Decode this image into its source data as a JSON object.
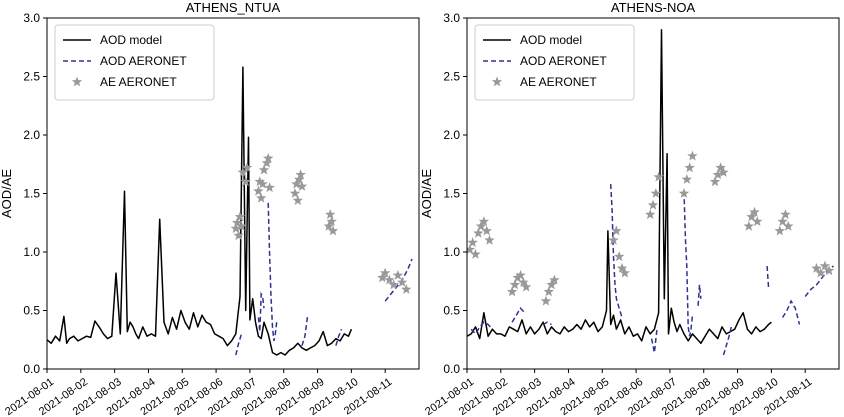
{
  "chart_data": [
    {
      "type": "line",
      "title": "ATHENS_NTUA",
      "ylabel": "AOD/AE",
      "xlabel": "",
      "ylim": [
        0,
        3.0
      ],
      "yticks": [
        "0.0",
        "0.5",
        "1.0",
        "1.5",
        "2.0",
        "2.5",
        "3.0"
      ],
      "xlim": [
        "2021-08-01",
        "2021-08-12"
      ],
      "xticks": [
        "2021-08-01",
        "2021-08-02",
        "2021-08-03",
        "2021-08-04",
        "2021-08-05",
        "2021-08-06",
        "2021-08-07",
        "2021-08-08",
        "2021-08-09",
        "2021-08-10",
        "2021-08-11"
      ],
      "legend": {
        "placement": "top-left",
        "entries": [
          "AOD model",
          "AOD AERONET",
          "AE AERONET"
        ]
      },
      "series": [
        {
          "name": "AOD model",
          "style": "solid",
          "color": "#000000",
          "x": [
            "2021-08-01T00",
            "2021-08-01T03",
            "2021-08-01T06",
            "2021-08-01T09",
            "2021-08-01T12",
            "2021-08-01T14",
            "2021-08-01T16",
            "2021-08-01T19",
            "2021-08-01T22",
            "2021-08-02T01",
            "2021-08-02T04",
            "2021-08-02T07",
            "2021-08-02T10",
            "2021-08-02T13",
            "2021-08-02T16",
            "2021-08-02T19",
            "2021-08-02T22",
            "2021-08-03T01",
            "2021-08-03T04",
            "2021-08-03T07",
            "2021-08-03T09",
            "2021-08-03T11",
            "2021-08-03T13",
            "2021-08-03T15",
            "2021-08-03T17",
            "2021-08-03T20",
            "2021-08-03T23",
            "2021-08-04T02",
            "2021-08-04T05",
            "2021-08-04T08",
            "2021-08-04T11",
            "2021-08-04T14",
            "2021-08-04T17",
            "2021-08-04T20",
            "2021-08-04T23",
            "2021-08-05T02",
            "2021-08-05T05",
            "2021-08-05T08",
            "2021-08-05T11",
            "2021-08-05T14",
            "2021-08-05T17",
            "2021-08-05T20",
            "2021-08-05T23",
            "2021-08-06T02",
            "2021-08-06T05",
            "2021-08-06T08",
            "2021-08-06T11",
            "2021-08-06T14",
            "2021-08-06T17",
            "2021-08-06T19",
            "2021-08-06T21",
            "2021-08-06T23",
            "2021-08-07T00",
            "2021-08-07T02",
            "2021-08-07T04",
            "2021-08-07T06",
            "2021-08-07T08",
            "2021-08-07T10",
            "2021-08-07T13",
            "2021-08-07T16",
            "2021-08-07T19",
            "2021-08-07T22",
            "2021-08-08T01",
            "2021-08-08T04",
            "2021-08-08T07",
            "2021-08-08T10",
            "2021-08-08T13",
            "2021-08-08T16",
            "2021-08-08T19",
            "2021-08-08T22",
            "2021-08-09T01",
            "2021-08-09T04",
            "2021-08-09T07",
            "2021-08-09T10",
            "2021-08-09T13",
            "2021-08-09T16",
            "2021-08-09T19",
            "2021-08-09T22",
            "2021-08-10T00"
          ],
          "y": [
            0.25,
            0.22,
            0.28,
            0.24,
            0.45,
            0.22,
            0.26,
            0.28,
            0.24,
            0.26,
            0.28,
            0.27,
            0.41,
            0.36,
            0.3,
            0.26,
            0.28,
            0.82,
            0.3,
            1.52,
            0.32,
            0.4,
            0.36,
            0.3,
            0.26,
            0.36,
            0.28,
            0.3,
            0.28,
            1.28,
            0.4,
            0.3,
            0.44,
            0.34,
            0.5,
            0.4,
            0.34,
            0.48,
            0.36,
            0.46,
            0.4,
            0.38,
            0.3,
            0.28,
            0.26,
            0.2,
            0.24,
            0.3,
            0.62,
            2.58,
            0.5,
            1.98,
            0.42,
            0.6,
            0.4,
            0.28,
            0.26,
            0.4,
            0.3,
            0.14,
            0.12,
            0.14,
            0.12,
            0.16,
            0.18,
            0.22,
            0.18,
            0.16,
            0.18,
            0.2,
            0.24,
            0.32,
            0.2,
            0.22,
            0.26,
            0.24,
            0.3,
            0.28,
            0.34
          ]
        },
        {
          "name": "AOD AERONET",
          "style": "dashed",
          "color": "#2e3192",
          "segments": [
            {
              "x": [
                "2021-08-06T14",
                "2021-08-06T16",
                "2021-08-06T18"
              ],
              "y": [
                0.12,
                0.22,
                0.3
              ]
            },
            {
              "x": [
                "2021-08-07T06",
                "2021-08-07T07",
                "2021-08-07T08",
                "2021-08-07T09",
                "2021-08-07T10"
              ],
              "y": [
                0.44,
                0.32,
                0.64,
                0.62,
                0.52
              ]
            },
            {
              "x": [
                "2021-08-07T13",
                "2021-08-07T14",
                "2021-08-07T15",
                "2021-08-07T16",
                "2021-08-07T17",
                "2021-08-07T18",
                "2021-08-07T19"
              ],
              "y": [
                1.42,
                0.98,
                0.62,
                0.36,
                0.24,
                0.3,
                0.4
              ]
            },
            {
              "x": [
                "2021-08-08T13",
                "2021-08-08T15",
                "2021-08-08T17"
              ],
              "y": [
                0.2,
                0.28,
                0.46
              ]
            },
            {
              "x": [
                "2021-08-09T13",
                "2021-08-09T15",
                "2021-08-09T17"
              ],
              "y": [
                0.2,
                0.28,
                0.34
              ]
            },
            {
              "x": [
                "2021-08-11T00",
                "2021-08-11T04",
                "2021-08-11T08",
                "2021-08-11T12",
                "2021-08-11T16",
                "2021-08-11T19"
              ],
              "y": [
                0.58,
                0.64,
                0.7,
                0.76,
                0.85,
                0.94
              ]
            }
          ]
        },
        {
          "name": "AE AERONET",
          "style": "marker",
          "marker": "star",
          "color": "#999999",
          "x": [
            "2021-08-06T14",
            "2021-08-06T15",
            "2021-08-06T16",
            "2021-08-06T17",
            "2021-08-06T18",
            "2021-08-06T19",
            "2021-08-06T21",
            "2021-08-06T22",
            "2021-08-07T06",
            "2021-08-07T07",
            "2021-08-07T08",
            "2021-08-07T09",
            "2021-08-07T10",
            "2021-08-07T12",
            "2021-08-07T13",
            "2021-08-07T14",
            "2021-08-08T08",
            "2021-08-08T09",
            "2021-08-08T10",
            "2021-08-08T11",
            "2021-08-08T12",
            "2021-08-08T13",
            "2021-08-09T08",
            "2021-08-09T09",
            "2021-08-09T10",
            "2021-08-09T11",
            "2021-08-10T22",
            "2021-08-11T00",
            "2021-08-11T03",
            "2021-08-11T06",
            "2021-08-11T09",
            "2021-08-11T12",
            "2021-08-11T15"
          ],
          "y": [
            1.2,
            1.25,
            1.14,
            1.3,
            1.22,
            1.68,
            1.6,
            1.72,
            1.52,
            1.6,
            1.46,
            1.58,
            1.7,
            1.76,
            1.8,
            1.55,
            1.5,
            1.58,
            1.44,
            1.62,
            1.66,
            1.56,
            1.22,
            1.32,
            1.26,
            1.18,
            0.78,
            0.82,
            0.76,
            0.72,
            0.8,
            0.74,
            0.68
          ]
        }
      ]
    },
    {
      "type": "line",
      "title": "ATHENS-NOA",
      "ylabel": "AOD/AE",
      "xlabel": "",
      "ylim": [
        0,
        3.0
      ],
      "yticks": [
        "0.0",
        "0.5",
        "1.0",
        "1.5",
        "2.0",
        "2.5",
        "3.0"
      ],
      "xlim": [
        "2021-08-01",
        "2021-08-12"
      ],
      "xticks": [
        "2021-08-01",
        "2021-08-02",
        "2021-08-03",
        "2021-08-04",
        "2021-08-05",
        "2021-08-06",
        "2021-08-07",
        "2021-08-08",
        "2021-08-09",
        "2021-08-10",
        "2021-08-11"
      ],
      "legend": {
        "placement": "top-left",
        "entries": [
          "AOD model",
          "AOD AERONET",
          "AE AERONET"
        ]
      },
      "series": [
        {
          "name": "AOD model",
          "style": "solid",
          "color": "#000000",
          "x": [
            "2021-08-01T00",
            "2021-08-01T03",
            "2021-08-01T06",
            "2021-08-01T09",
            "2021-08-01T12",
            "2021-08-01T15",
            "2021-08-01T18",
            "2021-08-01T21",
            "2021-08-02T00",
            "2021-08-02T03",
            "2021-08-02T06",
            "2021-08-02T09",
            "2021-08-02T12",
            "2021-08-02T15",
            "2021-08-02T18",
            "2021-08-02T21",
            "2021-08-03T00",
            "2021-08-03T03",
            "2021-08-03T06",
            "2021-08-03T09",
            "2021-08-03T12",
            "2021-08-03T15",
            "2021-08-03T18",
            "2021-08-03T21",
            "2021-08-04T00",
            "2021-08-04T03",
            "2021-08-04T06",
            "2021-08-04T09",
            "2021-08-04T12",
            "2021-08-04T15",
            "2021-08-04T18",
            "2021-08-04T21",
            "2021-08-05T00",
            "2021-08-05T03",
            "2021-08-05T04",
            "2021-08-05T06",
            "2021-08-05T08",
            "2021-08-05T10",
            "2021-08-05T13",
            "2021-08-05T16",
            "2021-08-05T19",
            "2021-08-05T22",
            "2021-08-06T01",
            "2021-08-06T04",
            "2021-08-06T07",
            "2021-08-06T10",
            "2021-08-06T13",
            "2021-08-06T16",
            "2021-08-06T18",
            "2021-08-06T20",
            "2021-08-06T22",
            "2021-08-06T23",
            "2021-08-07T01",
            "2021-08-07T03",
            "2021-08-07T05",
            "2021-08-07T07",
            "2021-08-07T10",
            "2021-08-07T13",
            "2021-08-07T16",
            "2021-08-07T19",
            "2021-08-07T22",
            "2021-08-08T01",
            "2021-08-08T04",
            "2021-08-08T07",
            "2021-08-08T10",
            "2021-08-08T13",
            "2021-08-08T16",
            "2021-08-08T19",
            "2021-08-08T22",
            "2021-08-09T01",
            "2021-08-09T04",
            "2021-08-09T07",
            "2021-08-09T10",
            "2021-08-09T13",
            "2021-08-09T16",
            "2021-08-09T19",
            "2021-08-09T22",
            "2021-08-10T00"
          ],
          "y": [
            0.28,
            0.3,
            0.36,
            0.26,
            0.48,
            0.28,
            0.34,
            0.3,
            0.3,
            0.28,
            0.36,
            0.34,
            0.32,
            0.42,
            0.3,
            0.36,
            0.3,
            0.34,
            0.4,
            0.3,
            0.36,
            0.32,
            0.3,
            0.36,
            0.32,
            0.34,
            0.38,
            0.34,
            0.42,
            0.36,
            0.4,
            0.32,
            0.36,
            0.5,
            1.18,
            0.38,
            0.46,
            0.34,
            0.42,
            0.3,
            0.36,
            0.28,
            0.3,
            0.24,
            0.36,
            0.3,
            0.34,
            0.48,
            2.9,
            0.6,
            1.84,
            0.3,
            0.52,
            0.4,
            0.32,
            0.38,
            0.3,
            0.24,
            0.3,
            0.26,
            0.22,
            0.28,
            0.34,
            0.3,
            0.26,
            0.36,
            0.3,
            0.32,
            0.34,
            0.42,
            0.48,
            0.34,
            0.3,
            0.36,
            0.32,
            0.34,
            0.38,
            0.4
          ]
        },
        {
          "name": "AOD AERONET",
          "style": "dashed",
          "color": "#2e3192",
          "segments": [
            {
              "x": [
                "2021-08-01T03",
                "2021-08-01T06",
                "2021-08-01T09",
                "2021-08-01T12",
                "2021-08-01T15",
                "2021-08-01T18"
              ],
              "y": [
                0.34,
                0.3,
                0.36,
                0.4,
                0.38,
                0.34
              ]
            },
            {
              "x": [
                "2021-08-02T08",
                "2021-08-02T11",
                "2021-08-02T14",
                "2021-08-02T17"
              ],
              "y": [
                0.4,
                0.46,
                0.52,
                0.48
              ]
            },
            {
              "x": [
                "2021-08-03T06",
                "2021-08-03T09",
                "2021-08-03T12"
              ],
              "y": [
                0.38,
                0.4,
                0.38
              ]
            },
            {
              "x": [
                "2021-08-05T06",
                "2021-08-05T07",
                "2021-08-05T08",
                "2021-08-05T09",
                "2021-08-05T10",
                "2021-08-05T11",
                "2021-08-05T12",
                "2021-08-05T13",
                "2021-08-05T14"
              ],
              "y": [
                1.58,
                1.36,
                0.96,
                0.72,
                0.6,
                0.56,
                0.52,
                0.48,
                0.44
              ]
            },
            {
              "x": [
                "2021-08-06T11",
                "2021-08-06T13",
                "2021-08-06T15"
              ],
              "y": [
                0.26,
                0.14,
                0.36
              ]
            },
            {
              "x": [
                "2021-08-07T10",
                "2021-08-07T11",
                "2021-08-07T12",
                "2021-08-07T13",
                "2021-08-07T14",
                "2021-08-07T15",
                "2021-08-07T16"
              ],
              "y": [
                1.52,
                1.12,
                0.88,
                0.36,
                0.28,
                0.34,
                0.46
              ]
            },
            {
              "x": [
                "2021-08-07T20",
                "2021-08-07T21",
                "2021-08-07T22"
              ],
              "y": [
                0.54,
                0.72,
                0.6
              ]
            },
            {
              "x": [
                "2021-08-08T14",
                "2021-08-08T16",
                "2021-08-08T18",
                "2021-08-08T20"
              ],
              "y": [
                0.12,
                0.2,
                0.28,
                0.38
              ]
            },
            {
              "x": [
                "2021-08-09T21",
                "2021-08-09T22"
              ],
              "y": [
                0.88,
                0.7
              ]
            },
            {
              "x": [
                "2021-08-10T08",
                "2021-08-10T11",
                "2021-08-10T14",
                "2021-08-10T17",
                "2021-08-10T20"
              ],
              "y": [
                0.44,
                0.5,
                0.58,
                0.52,
                0.38
              ]
            },
            {
              "x": [
                "2021-08-11T00",
                "2021-08-11T04",
                "2021-08-11T08",
                "2021-08-11T12",
                "2021-08-11T16",
                "2021-08-11T20"
              ],
              "y": [
                0.62,
                0.68,
                0.72,
                0.78,
                0.84,
                0.88
              ]
            }
          ]
        },
        {
          "name": "AE AERONET",
          "style": "marker",
          "marker": "star",
          "color": "#999999",
          "x": [
            "2021-08-01T02",
            "2021-08-01T04",
            "2021-08-01T06",
            "2021-08-01T08",
            "2021-08-01T10",
            "2021-08-01T12",
            "2021-08-01T14",
            "2021-08-01T16",
            "2021-08-02T08",
            "2021-08-02T10",
            "2021-08-02T12",
            "2021-08-02T14",
            "2021-08-02T16",
            "2021-08-02T18",
            "2021-08-03T08",
            "2021-08-03T10",
            "2021-08-03T12",
            "2021-08-03T14",
            "2021-08-05T08",
            "2021-08-05T10",
            "2021-08-05T12",
            "2021-08-05T14",
            "2021-08-05T16",
            "2021-08-06T10",
            "2021-08-06T12",
            "2021-08-06T14",
            "2021-08-06T16",
            "2021-08-07T10",
            "2021-08-07T12",
            "2021-08-07T14",
            "2021-08-07T16",
            "2021-08-08T08",
            "2021-08-08T10",
            "2021-08-08T12",
            "2021-08-08T14",
            "2021-08-09T08",
            "2021-08-09T10",
            "2021-08-09T12",
            "2021-08-09T14",
            "2021-08-10T06",
            "2021-08-10T08",
            "2021-08-10T10",
            "2021-08-10T12",
            "2021-08-11T08",
            "2021-08-11T11",
            "2021-08-11T14",
            "2021-08-11T17"
          ],
          "y": [
            1.02,
            1.08,
            0.98,
            1.16,
            1.22,
            1.26,
            1.18,
            1.1,
            0.66,
            0.72,
            0.78,
            0.8,
            0.74,
            0.7,
            0.58,
            0.66,
            0.72,
            0.76,
            1.1,
            1.18,
            0.96,
            0.86,
            0.82,
            1.32,
            1.4,
            1.5,
            1.64,
            1.5,
            1.62,
            1.72,
            1.82,
            1.6,
            1.66,
            1.72,
            1.68,
            1.22,
            1.3,
            1.34,
            1.26,
            1.18,
            1.26,
            1.32,
            1.22,
            0.86,
            0.82,
            0.88,
            0.84
          ]
        }
      ]
    }
  ]
}
